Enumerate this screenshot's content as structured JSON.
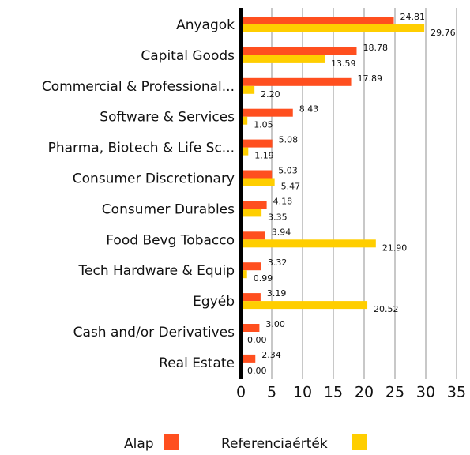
{
  "chart_data": {
    "type": "hbar",
    "categories": [
      "Anyagok",
      "Capital Goods",
      "Commercial & Professional...",
      "Software & Services",
      "Pharma, Biotech & Life Sc...",
      "Consumer Discretionary",
      "Consumer Durables",
      "Food Bevg Tobacco",
      "Tech Hardware & Equip",
      "Egyéb",
      "Cash and/or Derivatives",
      "Real Estate"
    ],
    "series": [
      {
        "name": "Alap",
        "color": "#ff4f1f",
        "values": [
          24.81,
          18.78,
          17.89,
          8.43,
          5.08,
          5.03,
          4.18,
          3.94,
          3.32,
          3.19,
          3.0,
          2.34
        ],
        "value_labels": [
          "24.81",
          "18.78",
          "17.89",
          "8.43",
          "5.08",
          "5.03",
          "4.18",
          "3.94",
          "3.32",
          "3.19",
          "3.00",
          "2.34"
        ]
      },
      {
        "name": "Referenciaérték",
        "color": "#ffce00",
        "values": [
          29.76,
          13.59,
          2.2,
          1.05,
          1.19,
          5.47,
          3.35,
          21.9,
          0.99,
          20.52,
          0.0,
          0.0
        ],
        "value_labels": [
          "29.76",
          "13.59",
          "2.20",
          "1.05",
          "1.19",
          "5.47",
          "3.35",
          "21.90",
          "0.99",
          "20.52",
          "0.00",
          "0.00"
        ]
      }
    ],
    "xlim": [
      0,
      35
    ],
    "xticks": [
      0,
      5,
      10,
      15,
      20,
      25,
      30,
      35
    ],
    "grid": true,
    "legend": "bottom"
  }
}
